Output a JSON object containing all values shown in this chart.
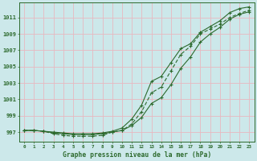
{
  "x": [
    0,
    1,
    2,
    3,
    4,
    5,
    6,
    7,
    8,
    9,
    10,
    11,
    12,
    13,
    14,
    15,
    16,
    17,
    18,
    19,
    20,
    21,
    22,
    23
  ],
  "line1": [
    997.2,
    997.2,
    997.1,
    996.9,
    996.8,
    996.7,
    996.7,
    996.7,
    996.8,
    997.0,
    997.2,
    997.8,
    998.8,
    1000.5,
    1001.2,
    1002.8,
    1004.8,
    1006.2,
    1008.0,
    1009.0,
    1009.8,
    1010.8,
    1011.4,
    1011.7
  ],
  "line2": [
    997.2,
    997.2,
    997.1,
    996.8,
    996.6,
    996.5,
    996.5,
    996.5,
    996.6,
    997.0,
    997.2,
    998.0,
    999.5,
    1001.8,
    1002.5,
    1004.5,
    1006.5,
    1007.5,
    1009.0,
    1009.6,
    1010.2,
    1011.0,
    1011.5,
    1011.9
  ],
  "line3": [
    997.2,
    997.2,
    997.1,
    997.0,
    996.9,
    996.8,
    996.8,
    996.8,
    996.9,
    997.1,
    997.5,
    998.6,
    1000.3,
    1003.2,
    1003.8,
    1005.5,
    1007.2,
    1007.8,
    1009.2,
    1009.9,
    1010.6,
    1011.6,
    1012.1,
    1012.3
  ],
  "line_color": "#2d6a2d",
  "bg_color": "#cce8ea",
  "grid_color": "#e8b8c0",
  "ylabel_values": [
    997,
    999,
    1001,
    1003,
    1005,
    1007,
    1009,
    1011
  ],
  "ymin": 995.8,
  "ymax": 1012.8,
  "xlabel": "Graphe pression niveau de la mer (hPa)",
  "title": ""
}
